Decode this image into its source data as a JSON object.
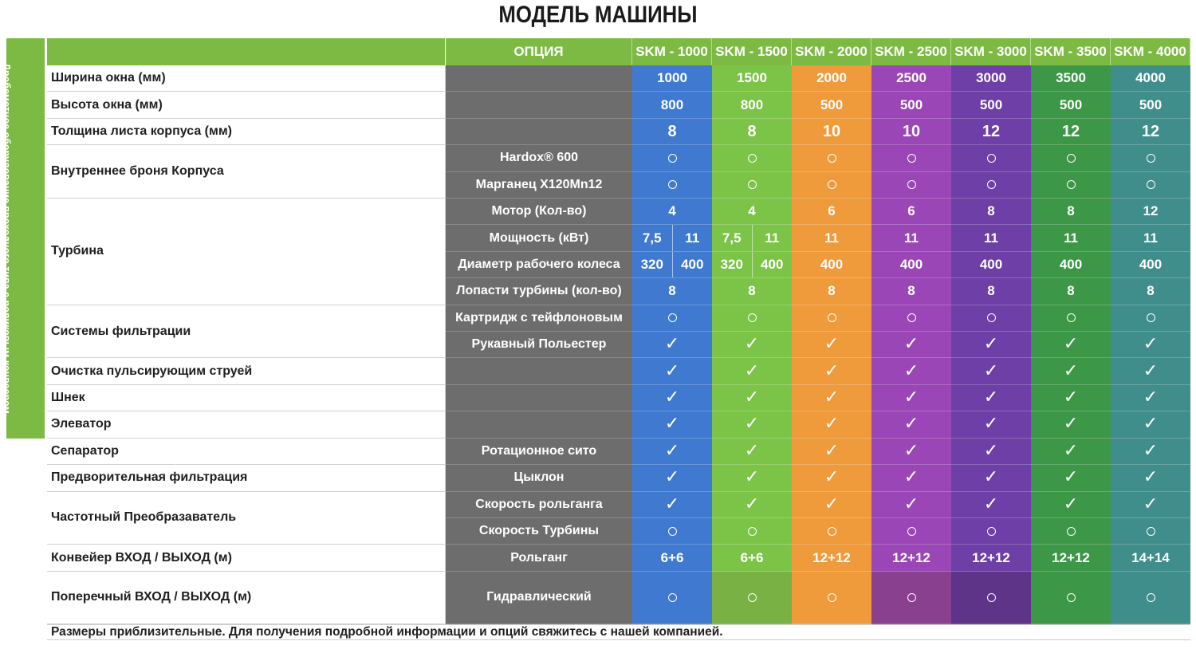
{
  "title": "МОДЕЛЬ МАШИНЫ",
  "side_label": "Дробеметное оборудование проходного типа с роликовым конвеером",
  "header": {
    "option_label": "ОПЦИЯ",
    "models": [
      "SKM - 1000",
      "SKM - 1500",
      "SKM - 2000",
      "SKM - 2500",
      "SKM - 3000",
      "SKM - 3500",
      "SKM - 4000"
    ]
  },
  "colors": {
    "header_green": "#7cba43",
    "option_gray": "#6d6d6d",
    "columns": [
      "#3f7ad0",
      "#7cc447",
      "#ef9a3b",
      "#9a46b6",
      "#6e3fa7",
      "#3c9747",
      "#3f8e8b"
    ],
    "last_row": [
      "#3f7ad0",
      "#79b145",
      "#ef9a3b",
      "#89408f",
      "#5e3489",
      "#3c9747",
      "#3f8e8b"
    ]
  },
  "groups": [
    {
      "label": "Ширина окна (мм)"
    },
    {
      "label": "Высота окна (мм)"
    },
    {
      "label": "Толщина листа корпуса (мм)"
    },
    {
      "label": "Внутреннее броня Корпуса"
    },
    {
      "label": "Турбина"
    },
    {
      "label": "Системы фильтрации"
    },
    {
      "label": "Очистка пульсирующим струей"
    },
    {
      "label": "Шнек"
    },
    {
      "label": "Элеватор"
    },
    {
      "label": "Сепаратор"
    },
    {
      "label": "Предворительная фильтрация"
    },
    {
      "label": "Частотный Преобразаватель"
    },
    {
      "label": "Конвейер ВХОД / ВЫХОД (м)"
    },
    {
      "label": "Поперечный ВХОД / ВЫХОД (м)"
    }
  ],
  "rows": [
    {
      "group": 0,
      "option": "",
      "big": false,
      "cells": [
        "1000",
        "1500",
        "2000",
        "2500",
        "3000",
        "3500",
        "4000"
      ]
    },
    {
      "group": 1,
      "option": "",
      "big": false,
      "cells": [
        "800",
        "800",
        "500",
        "500",
        "500",
        "500",
        "500"
      ]
    },
    {
      "group": 2,
      "option": "",
      "big": true,
      "cells": [
        "8",
        "8",
        "10",
        "10",
        "12",
        "12",
        "12"
      ]
    },
    {
      "group": 3,
      "option": "Hardox® 600",
      "cells": [
        "circle",
        "circle",
        "circle",
        "circle",
        "circle",
        "circle",
        "circle"
      ]
    },
    {
      "group": 3,
      "option": "Марганец X120Mn12",
      "cells": [
        "circle",
        "circle",
        "circle",
        "circle",
        "circle",
        "circle",
        "circle"
      ]
    },
    {
      "group": 4,
      "option": "Мотор (Кол-во)",
      "cells": [
        "4",
        "4",
        "6",
        "6",
        "8",
        "8",
        "12"
      ]
    },
    {
      "group": 4,
      "option": "Мощность (кВт)",
      "cells": [
        [
          "7,5",
          "11"
        ],
        [
          "7,5",
          "11"
        ],
        "11",
        "11",
        "11",
        "11",
        "11"
      ]
    },
    {
      "group": 4,
      "option": "Диаметр рабочего колеса",
      "cells": [
        [
          "320",
          "400"
        ],
        [
          "320",
          "400"
        ],
        "400",
        "400",
        "400",
        "400",
        "400"
      ]
    },
    {
      "group": 4,
      "option": "Лопасти турбины (кол-во)",
      "cells": [
        "8",
        "8",
        "8",
        "8",
        "8",
        "8",
        "8"
      ]
    },
    {
      "group": 5,
      "option": "Картридж с тейфлоновым",
      "cells": [
        "circle",
        "circle",
        "circle",
        "circle",
        "circle",
        "circle",
        "circle"
      ]
    },
    {
      "group": 5,
      "option": "Рукавный Польестер",
      "cells": [
        "check",
        "check",
        "check",
        "check",
        "check",
        "check",
        "check"
      ]
    },
    {
      "group": 6,
      "option": "",
      "cells": [
        "check",
        "check",
        "check",
        "check",
        "check",
        "check",
        "check"
      ]
    },
    {
      "group": 7,
      "option": "",
      "cells": [
        "check",
        "check",
        "check",
        "check",
        "check",
        "check",
        "check"
      ]
    },
    {
      "group": 8,
      "option": "",
      "cells": [
        "check",
        "check",
        "check",
        "check",
        "check",
        "check",
        "check"
      ]
    },
    {
      "group": 9,
      "option": "Ротационное сито",
      "cells": [
        "check",
        "check",
        "check",
        "check",
        "check",
        "check",
        "check"
      ]
    },
    {
      "group": 10,
      "option": "Цыклон",
      "cells": [
        "check",
        "check",
        "check",
        "check",
        "check",
        "check",
        "check"
      ]
    },
    {
      "group": 11,
      "option": "Скорость рольганга",
      "cells": [
        "check",
        "check",
        "check",
        "check",
        "check",
        "check",
        "check"
      ]
    },
    {
      "group": 11,
      "option": "Скорость Турбины",
      "cells": [
        "circle",
        "circle",
        "circle",
        "circle",
        "circle",
        "circle",
        "circle"
      ]
    },
    {
      "group": 12,
      "option": "Рольганг",
      "cells": [
        "6+6",
        "6+6",
        "12+12",
        "12+12",
        "12+12",
        "12+12",
        "14+14"
      ]
    },
    {
      "group": 13,
      "option": "Гидравлический",
      "cells": [
        "circle",
        "circle",
        "circle",
        "circle",
        "circle",
        "circle",
        "circle"
      ]
    }
  ],
  "note": "Размеры приблизительные. Для получения подробной информации и опций свяжитесь с нашей компанией."
}
